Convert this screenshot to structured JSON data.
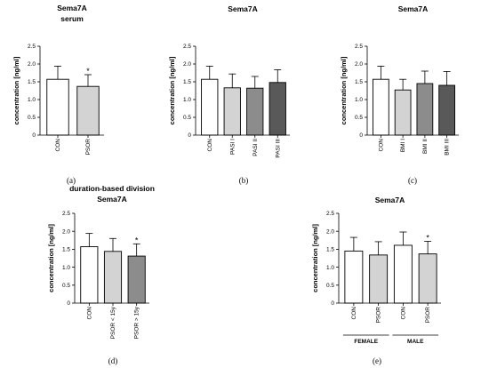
{
  "chart_data": [
    {
      "id": "a",
      "type": "bar",
      "panel_label": "(a)",
      "title": "Sema7A",
      "subtitle": "serum",
      "ylabel": "concentration [ng/ml]",
      "xlabel": "",
      "ylim": [
        0,
        2.5
      ],
      "yticks": [
        "0",
        "0.5",
        "1.0",
        "1.5",
        "2.0",
        "2.5"
      ],
      "categories": [
        "CON",
        "PSOR"
      ],
      "values": [
        1.57,
        1.37
      ],
      "errors": [
        0.37,
        0.33
      ],
      "colors": [
        "#ffffff",
        "#d3d3d3"
      ],
      "significance": [
        "",
        "*"
      ],
      "groups": []
    },
    {
      "id": "b",
      "type": "bar",
      "panel_label": "(b)",
      "title": "Sema7A",
      "subtitle": "",
      "ylabel": "concentration [ng/ml]",
      "xlabel": "",
      "ylim": [
        0,
        2.5
      ],
      "yticks": [
        "0",
        "0.5",
        "1.0",
        "1.5",
        "2.0",
        "2.5"
      ],
      "categories": [
        "CON",
        "PASI I",
        "PASI II",
        "PASI III"
      ],
      "values": [
        1.57,
        1.33,
        1.32,
        1.48
      ],
      "errors": [
        0.37,
        0.39,
        0.33,
        0.36
      ],
      "colors": [
        "#ffffff",
        "#d3d3d3",
        "#8c8c8c",
        "#595959"
      ],
      "significance": [
        "",
        "",
        "",
        ""
      ],
      "groups": []
    },
    {
      "id": "c",
      "type": "bar",
      "panel_label": "(c)",
      "title": "Sema7A",
      "subtitle": "",
      "ylabel": "concentration [ng/ml]",
      "xlabel": "",
      "ylim": [
        0,
        2.5
      ],
      "yticks": [
        "0",
        "0.5",
        "1.0",
        "1.5",
        "2.0",
        "2.5"
      ],
      "categories": [
        "CON",
        "BMI I",
        "BMI II",
        "BMI III"
      ],
      "values": [
        1.57,
        1.27,
        1.45,
        1.4
      ],
      "errors": [
        0.37,
        0.3,
        0.35,
        0.39
      ],
      "colors": [
        "#ffffff",
        "#d3d3d3",
        "#8c8c8c",
        "#595959"
      ],
      "significance": [
        "",
        "",
        "",
        ""
      ],
      "groups": []
    },
    {
      "id": "d",
      "type": "bar",
      "panel_label": "(d)",
      "title": "duration-based division",
      "subtitle": "Sema7A",
      "ylabel": "concentration [ng/ml]",
      "xlabel": "",
      "ylim": [
        0,
        2.5
      ],
      "yticks": [
        "0",
        "0.5",
        "1.0",
        "1.5",
        "2.0",
        "2.5"
      ],
      "categories": [
        "CON",
        "PSOR < 15y",
        "PSOR > 15y"
      ],
      "values": [
        1.57,
        1.44,
        1.31
      ],
      "errors": [
        0.37,
        0.36,
        0.34
      ],
      "colors": [
        "#ffffff",
        "#d3d3d3",
        "#8c8c8c"
      ],
      "significance": [
        "",
        "",
        "*"
      ],
      "groups": []
    },
    {
      "id": "e",
      "type": "bar",
      "panel_label": "(e)",
      "title": "Sema7A",
      "subtitle": "",
      "ylabel": "concentration [ng/ml]",
      "xlabel": "",
      "ylim": [
        0,
        2.5
      ],
      "yticks": [
        "0",
        "0.5",
        "1.0",
        "1.5",
        "2.0",
        "2.5"
      ],
      "categories": [
        "CON",
        "PSOR",
        "CON",
        "PSOR"
      ],
      "values": [
        1.45,
        1.34,
        1.61,
        1.37
      ],
      "errors": [
        0.38,
        0.37,
        0.37,
        0.35
      ],
      "colors": [
        "#ffffff",
        "#d3d3d3",
        "#ffffff",
        "#d3d3d3"
      ],
      "significance": [
        "",
        "",
        "",
        "*"
      ],
      "groups": [
        {
          "label": "FEMALE",
          "from": 0,
          "to": 1
        },
        {
          "label": "MALE",
          "from": 2,
          "to": 3
        }
      ]
    }
  ]
}
